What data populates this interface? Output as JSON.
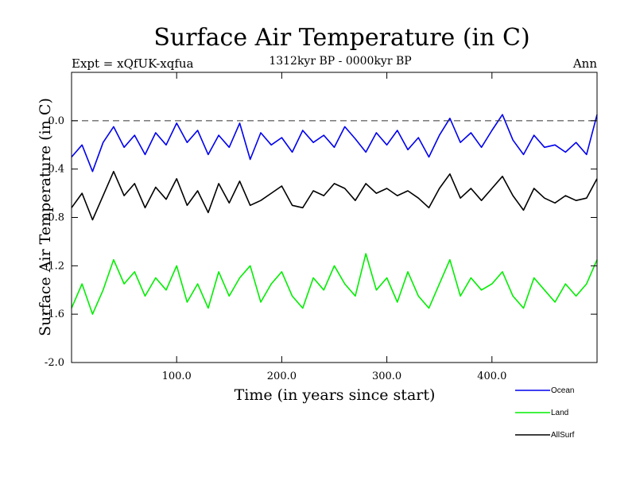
{
  "chart_data": {
    "type": "line",
    "title": "Surface Air Temperature (in C)",
    "subtitle": "1312kyr BP - 0000kyr BP",
    "left_label": "Expt = xQfUK-xqfua",
    "right_label": "Ann",
    "xlabel": "Time (in years since start)",
    "ylabel": "Surface Air Temperature (in C)",
    "xlim": [
      0,
      500
    ],
    "ylim": [
      -2.0,
      0.4
    ],
    "xticks": [
      100,
      200,
      300,
      400
    ],
    "xtick_labels": [
      "100.0",
      "200.0",
      "300.0",
      "400.0"
    ],
    "yticks": [
      0.0,
      -0.4,
      -0.8,
      -1.2,
      -1.6,
      -2.0
    ],
    "ytick_labels": [
      "0.0",
      "-0.4",
      "-0.8",
      "-1.2",
      "-1.6",
      "-2.0"
    ],
    "reference_line": 0.0,
    "legend_position": "bottom-right",
    "x": [
      0,
      10,
      20,
      30,
      40,
      50,
      60,
      70,
      80,
      90,
      100,
      110,
      120,
      130,
      140,
      150,
      160,
      170,
      180,
      190,
      200,
      210,
      220,
      230,
      240,
      250,
      260,
      270,
      280,
      290,
      300,
      310,
      320,
      330,
      340,
      350,
      360,
      370,
      380,
      390,
      400,
      410,
      420,
      430,
      440,
      450,
      460,
      470,
      480,
      490,
      500
    ],
    "series": [
      {
        "name": "Ocean",
        "color": "#0000ee",
        "values": [
          -0.3,
          -0.2,
          -0.42,
          -0.18,
          -0.05,
          -0.22,
          -0.12,
          -0.28,
          -0.1,
          -0.2,
          -0.02,
          -0.18,
          -0.08,
          -0.28,
          -0.12,
          -0.22,
          -0.02,
          -0.32,
          -0.1,
          -0.2,
          -0.14,
          -0.26,
          -0.08,
          -0.18,
          -0.12,
          -0.22,
          -0.05,
          -0.15,
          -0.26,
          -0.1,
          -0.2,
          -0.08,
          -0.24,
          -0.14,
          -0.3,
          -0.12,
          0.02,
          -0.18,
          -0.1,
          -0.22,
          -0.08,
          0.05,
          -0.16,
          -0.28,
          -0.12,
          -0.22,
          -0.2,
          -0.26,
          -0.18,
          -0.28,
          0.05
        ]
      },
      {
        "name": "Land",
        "color": "#00ee00",
        "values": [
          -1.55,
          -1.35,
          -1.6,
          -1.4,
          -1.15,
          -1.35,
          -1.25,
          -1.45,
          -1.3,
          -1.4,
          -1.2,
          -1.5,
          -1.35,
          -1.55,
          -1.25,
          -1.45,
          -1.3,
          -1.2,
          -1.5,
          -1.35,
          -1.25,
          -1.45,
          -1.55,
          -1.3,
          -1.4,
          -1.2,
          -1.35,
          -1.45,
          -1.1,
          -1.4,
          -1.3,
          -1.5,
          -1.25,
          -1.45,
          -1.55,
          -1.35,
          -1.15,
          -1.45,
          -1.3,
          -1.4,
          -1.35,
          -1.25,
          -1.45,
          -1.55,
          -1.3,
          -1.4,
          -1.5,
          -1.35,
          -1.45,
          -1.35,
          -1.15
        ]
      },
      {
        "name": "AllSurf",
        "color": "#000000",
        "values": [
          -0.72,
          -0.6,
          -0.82,
          -0.62,
          -0.42,
          -0.62,
          -0.52,
          -0.72,
          -0.55,
          -0.65,
          -0.48,
          -0.7,
          -0.58,
          -0.76,
          -0.52,
          -0.68,
          -0.5,
          -0.7,
          -0.66,
          -0.6,
          -0.54,
          -0.7,
          -0.72,
          -0.58,
          -0.62,
          -0.52,
          -0.56,
          -0.66,
          -0.52,
          -0.6,
          -0.56,
          -0.62,
          -0.58,
          -0.64,
          -0.72,
          -0.56,
          -0.44,
          -0.64,
          -0.56,
          -0.66,
          -0.56,
          -0.46,
          -0.62,
          -0.74,
          -0.56,
          -0.64,
          -0.68,
          -0.62,
          -0.66,
          -0.64,
          -0.48
        ]
      }
    ]
  }
}
